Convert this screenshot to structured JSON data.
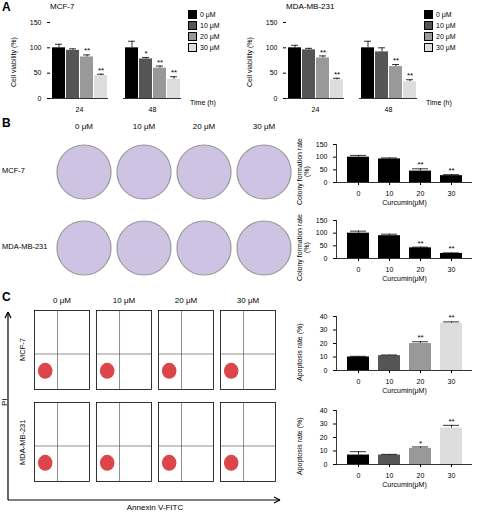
{
  "panels": [
    {
      "label": "A"
    },
    {
      "label": "B",
      "image_labels": [
        "0 μM",
        "10 μM",
        "20 μM",
        "30 μM"
      ],
      "row_labels": [
        "MCF-7",
        "MDA-MB-231"
      ]
    },
    {
      "label": "C",
      "image_labels": [
        "0 μM",
        "10 μM",
        "20 μM",
        "30 μM"
      ],
      "row_labels": [
        "MCF-7",
        "MDA-MB-231"
      ],
      "x_label": "Annexin V-FITC",
      "y_label": "PI"
    }
  ],
  "chart_data": [
    {
      "type": "bar",
      "title": "MCF-7",
      "categories": [
        "24",
        "48"
      ],
      "x_label": "Time (h)",
      "y_label": "Cell viability (%)",
      "ylim": [
        0,
        150
      ],
      "yticks": [
        0,
        50,
        100,
        150
      ],
      "legend": "right",
      "series": [
        {
          "name": "0 μM",
          "color": "#000000",
          "values": [
            100,
            100
          ],
          "errors": [
            7,
            13
          ]
        },
        {
          "name": "10 μM",
          "color": "#555555",
          "values": [
            95,
            78
          ],
          "errors": [
            3,
            3
          ]
        },
        {
          "name": "20 μM",
          "color": "#999999",
          "values": [
            82,
            60
          ],
          "errors": [
            4,
            4
          ]
        },
        {
          "name": "30 μM",
          "color": "#dddddd",
          "values": [
            45,
            38
          ],
          "errors": [
            3,
            5
          ]
        }
      ],
      "annotations": [
        {
          "x": "24",
          "series": "20 μM",
          "text": "**"
        },
        {
          "x": "24",
          "series": "30 μM",
          "text": "**"
        },
        {
          "x": "48",
          "series": "10 μM",
          "text": "*"
        },
        {
          "x": "48",
          "series": "20 μM",
          "text": "**"
        },
        {
          "x": "48",
          "series": "30 μM",
          "text": "**"
        }
      ]
    },
    {
      "type": "bar",
      "title": "MDA-MB-231",
      "categories": [
        "24",
        "48"
      ],
      "x_label": "Time (h)",
      "y_label": "Cell viability (%)",
      "ylim": [
        0,
        150
      ],
      "yticks": [
        0,
        50,
        100,
        150
      ],
      "legend": "right",
      "series": [
        {
          "name": "0 μM",
          "color": "#000000",
          "values": [
            100,
            100
          ],
          "errors": [
            5,
            13
          ]
        },
        {
          "name": "10 μM",
          "color": "#555555",
          "values": [
            96,
            92
          ],
          "errors": [
            3,
            8
          ]
        },
        {
          "name": "20 μM",
          "color": "#999999",
          "values": [
            80,
            63
          ],
          "errors": [
            4,
            4
          ]
        },
        {
          "name": "30 μM",
          "color": "#dddddd",
          "values": [
            37,
            33
          ],
          "errors": [
            3,
            4
          ]
        }
      ],
      "annotations": [
        {
          "x": "24",
          "series": "20 μM",
          "text": "**"
        },
        {
          "x": "24",
          "series": "30 μM",
          "text": "**"
        },
        {
          "x": "48",
          "series": "20 μM",
          "text": "**"
        },
        {
          "x": "48",
          "series": "30 μM",
          "text": "**"
        }
      ]
    },
    {
      "type": "bar",
      "categories": [
        "0",
        "10",
        "20",
        "30"
      ],
      "x_label": "Curcumin(μM)",
      "y_label": "Colony formation rate (%)",
      "ylim": [
        0,
        150
      ],
      "yticks": [
        0,
        50,
        100,
        150
      ],
      "color": "#000000",
      "values": [
        100,
        93,
        45,
        27
      ],
      "errors": [
        7,
        4,
        9,
        4
      ],
      "annotations": [
        {
          "x": "20",
          "text": "**"
        },
        {
          "x": "30",
          "text": "**"
        }
      ]
    },
    {
      "type": "bar",
      "categories": [
        "0",
        "10",
        "20",
        "30"
      ],
      "x_label": "Curcumin(μM)",
      "y_label": "Colony formation rate (%)",
      "ylim": [
        0,
        150
      ],
      "yticks": [
        0,
        50,
        100,
        150
      ],
      "color": "#000000",
      "values": [
        100,
        90,
        42,
        20
      ],
      "errors": [
        8,
        6,
        3,
        2
      ],
      "annotations": [
        {
          "x": "20",
          "text": "**"
        },
        {
          "x": "30",
          "text": "**"
        }
      ]
    },
    {
      "type": "bar",
      "categories": [
        "0",
        "10",
        "20",
        "30"
      ],
      "x_label": "Curcumin(μM)",
      "y_label": "Apoptosis rate (%)",
      "ylim": [
        0,
        40
      ],
      "yticks": [
        0,
        10,
        20,
        30,
        40
      ],
      "colors": [
        "#000000",
        "#555555",
        "#999999",
        "#dddddd"
      ],
      "values": [
        10,
        11,
        20,
        35
      ],
      "errors": [
        0.5,
        0.5,
        1.3,
        1
      ],
      "annotations": [
        {
          "x": "20",
          "text": "**"
        },
        {
          "x": "30",
          "text": "**"
        }
      ]
    },
    {
      "type": "bar",
      "categories": [
        "0",
        "10",
        "20",
        "30"
      ],
      "x_label": "Curcumin(μM)",
      "y_label": "Apoptosis rate (%)",
      "ylim": [
        0,
        40
      ],
      "yticks": [
        0,
        10,
        20,
        30,
        40
      ],
      "colors": [
        "#000000",
        "#555555",
        "#999999",
        "#dddddd"
      ],
      "values": [
        7,
        7,
        12,
        27
      ],
      "errors": [
        2.5,
        0.5,
        1,
        2
      ],
      "annotations": [
        {
          "x": "20",
          "text": "*"
        },
        {
          "x": "30",
          "text": "**"
        }
      ]
    }
  ]
}
